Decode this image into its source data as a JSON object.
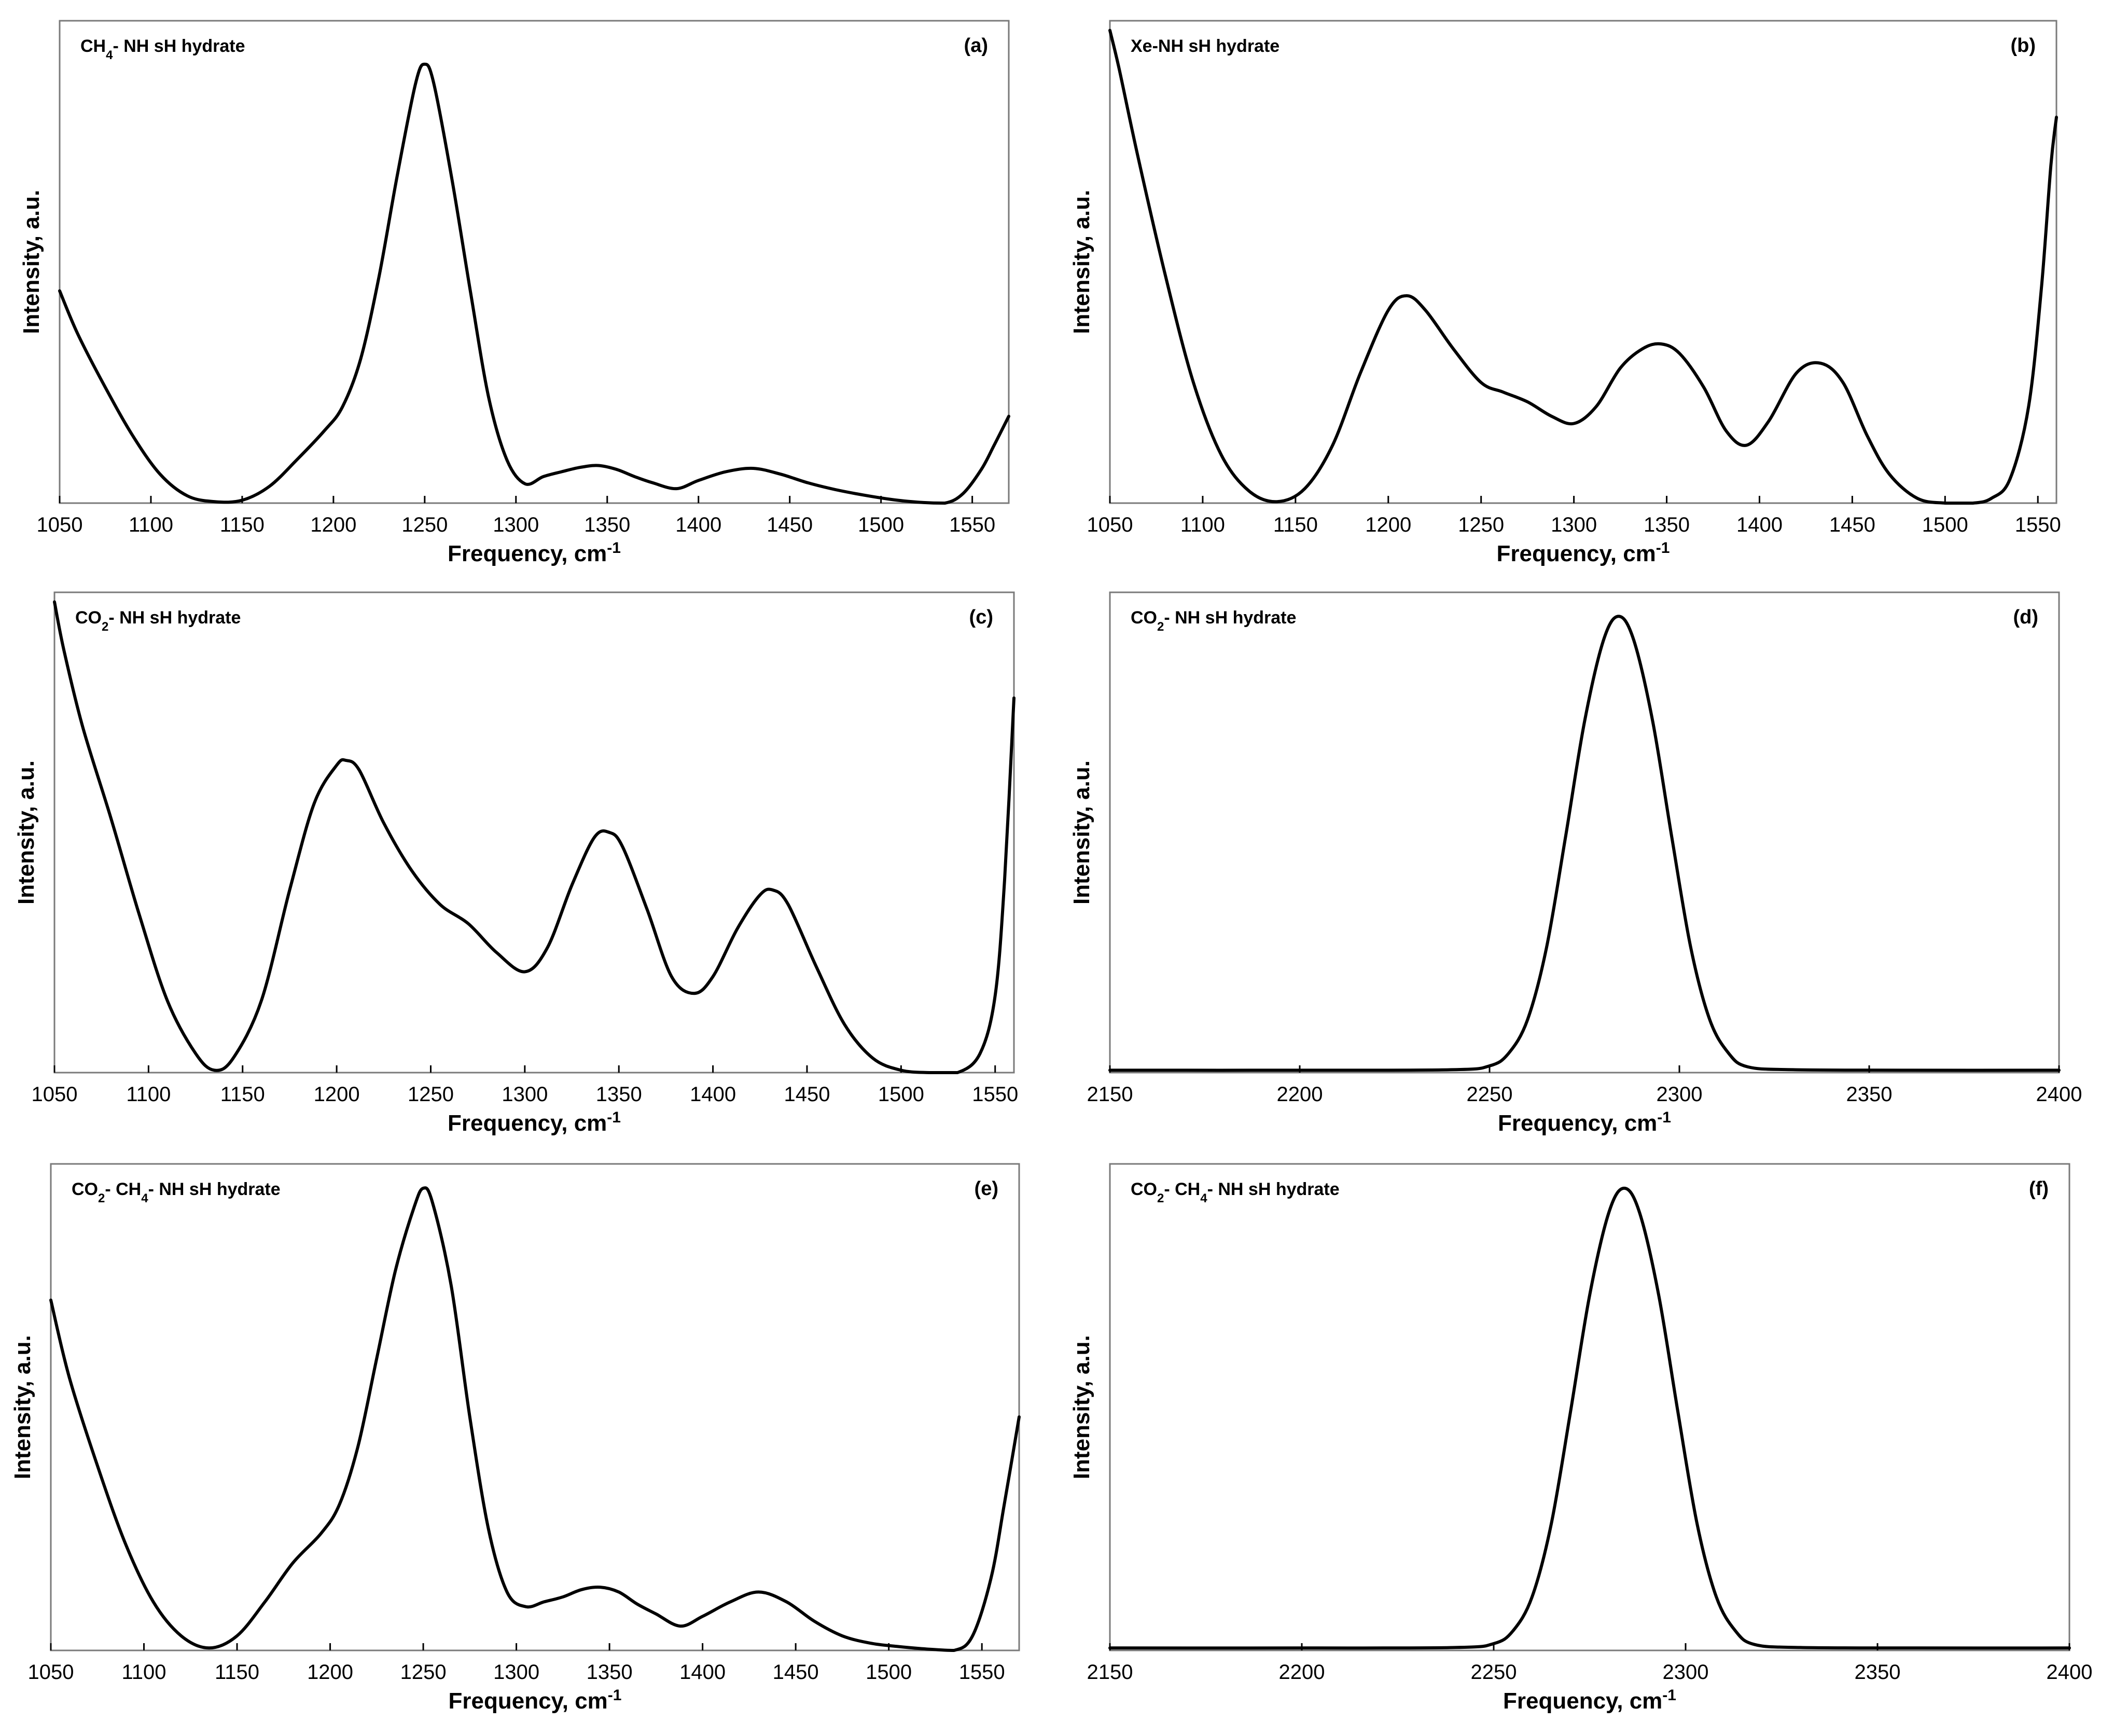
{
  "chart_data": [
    {
      "type": "line",
      "id": "a",
      "title": "CH4- NH sH hydrate",
      "panel_label": "(a)",
      "xlabel": "Frequency, cm-1",
      "ylabel": "Intensity, a.u.",
      "xlim": [
        1050,
        1570
      ],
      "ylim": [
        0,
        1
      ],
      "xticks": [
        1050,
        1100,
        1150,
        1200,
        1250,
        1300,
        1350,
        1400,
        1450,
        1500,
        1550
      ],
      "x": [
        1050,
        1060,
        1075,
        1090,
        1105,
        1120,
        1135,
        1150,
        1165,
        1180,
        1195,
        1205,
        1215,
        1225,
        1235,
        1245,
        1250,
        1255,
        1265,
        1275,
        1285,
        1295,
        1305,
        1315,
        1325,
        1335,
        1345,
        1355,
        1365,
        1375,
        1388,
        1400,
        1415,
        1430,
        1445,
        1460,
        1475,
        1490,
        1505,
        1520,
        1535,
        1545,
        1555,
        1562,
        1570
      ],
      "y": [
        0.44,
        0.35,
        0.24,
        0.14,
        0.06,
        0.015,
        0.003,
        0.006,
        0.035,
        0.09,
        0.15,
        0.2,
        0.3,
        0.47,
        0.68,
        0.87,
        0.91,
        0.87,
        0.67,
        0.44,
        0.22,
        0.09,
        0.04,
        0.055,
        0.065,
        0.074,
        0.078,
        0.07,
        0.055,
        0.042,
        0.03,
        0.047,
        0.065,
        0.072,
        0.06,
        0.042,
        0.028,
        0.017,
        0.008,
        0.002,
        0.0,
        0.02,
        0.07,
        0.12,
        0.18
      ]
    },
    {
      "type": "line",
      "id": "b",
      "title": "Xe-NH sH hydrate",
      "panel_label": "(b)",
      "xlabel": "Frequency, cm-1",
      "ylabel": "Intensity, a.u.",
      "xlim": [
        1050,
        1560
      ],
      "ylim": [
        0,
        1
      ],
      "xticks": [
        1050,
        1100,
        1150,
        1200,
        1250,
        1300,
        1350,
        1400,
        1450,
        1500,
        1550
      ],
      "x": [
        1050,
        1055,
        1065,
        1080,
        1095,
        1110,
        1125,
        1140,
        1155,
        1170,
        1185,
        1200,
        1210,
        1220,
        1235,
        1250,
        1262,
        1275,
        1288,
        1300,
        1312,
        1325,
        1337,
        1347,
        1357,
        1370,
        1382,
        1393,
        1405,
        1420,
        1433,
        1445,
        1458,
        1470,
        1485,
        1500,
        1515,
        1525,
        1535,
        1545,
        1552,
        1557,
        1560
      ],
      "y": [
        0.98,
        0.9,
        0.72,
        0.47,
        0.25,
        0.1,
        0.025,
        0.003,
        0.03,
        0.12,
        0.27,
        0.4,
        0.43,
        0.4,
        0.32,
        0.25,
        0.23,
        0.21,
        0.18,
        0.165,
        0.2,
        0.28,
        0.32,
        0.33,
        0.31,
        0.24,
        0.15,
        0.12,
        0.17,
        0.27,
        0.29,
        0.25,
        0.14,
        0.06,
        0.01,
        0.0,
        0.0,
        0.01,
        0.05,
        0.2,
        0.45,
        0.7,
        0.8
      ]
    },
    {
      "type": "line",
      "id": "c",
      "title": "CO2- NH sH hydrate",
      "panel_label": "(c)",
      "xlabel": "Frequency, cm-1",
      "ylabel": "Intensity, a.u.",
      "xlim": [
        1050,
        1560
      ],
      "ylim": [
        0,
        1
      ],
      "xticks": [
        1050,
        1100,
        1150,
        1200,
        1250,
        1300,
        1350,
        1400,
        1450,
        1500,
        1550
      ],
      "x": [
        1050,
        1055,
        1065,
        1080,
        1095,
        1110,
        1125,
        1135,
        1145,
        1160,
        1175,
        1188,
        1200,
        1205,
        1212,
        1225,
        1240,
        1255,
        1270,
        1285,
        1300,
        1312,
        1325,
        1337,
        1345,
        1352,
        1365,
        1378,
        1390,
        1400,
        1413,
        1425,
        1432,
        1440,
        1455,
        1470,
        1485,
        1500,
        1515,
        1530,
        1542,
        1550,
        1555,
        1560
      ],
      "y": [
        0.98,
        0.88,
        0.72,
        0.53,
        0.33,
        0.15,
        0.04,
        0.005,
        0.03,
        0.15,
        0.38,
        0.56,
        0.64,
        0.65,
        0.63,
        0.52,
        0.42,
        0.35,
        0.31,
        0.25,
        0.21,
        0.26,
        0.39,
        0.49,
        0.5,
        0.47,
        0.34,
        0.2,
        0.165,
        0.2,
        0.3,
        0.37,
        0.38,
        0.35,
        0.22,
        0.1,
        0.03,
        0.005,
        0.0,
        0.0,
        0.04,
        0.16,
        0.4,
        0.78
      ]
    },
    {
      "type": "line",
      "id": "d",
      "title": "CO2- NH sH hydrate",
      "panel_label": "(d)",
      "xlabel": "Frequency, cm-1",
      "ylabel": "Intensity, a.u.",
      "xlim": [
        2150,
        2400
      ],
      "ylim": [
        0,
        1
      ],
      "xticks": [
        2150,
        2200,
        2250,
        2300,
        2350,
        2400
      ],
      "x": [
        2150,
        2200,
        2240,
        2250,
        2255,
        2260,
        2265,
        2270,
        2275,
        2280,
        2284,
        2288,
        2293,
        2298,
        2303,
        2308,
        2313,
        2318,
        2330,
        2360,
        2400
      ],
      "y": [
        0.005,
        0.005,
        0.006,
        0.014,
        0.04,
        0.11,
        0.26,
        0.49,
        0.73,
        0.9,
        0.95,
        0.9,
        0.73,
        0.49,
        0.26,
        0.11,
        0.04,
        0.012,
        0.006,
        0.005,
        0.005
      ]
    },
    {
      "type": "line",
      "id": "e",
      "title": "CO2- CH4- NH sH hydrate",
      "panel_label": "(e)",
      "xlabel": "Frequency, cm-1",
      "ylabel": "Intensity, a.u.",
      "xlim": [
        1050,
        1570
      ],
      "ylim": [
        0,
        1
      ],
      "xticks": [
        1050,
        1100,
        1150,
        1200,
        1250,
        1300,
        1350,
        1400,
        1450,
        1500,
        1550
      ],
      "x": [
        1050,
        1060,
        1075,
        1090,
        1105,
        1120,
        1135,
        1150,
        1165,
        1180,
        1195,
        1205,
        1215,
        1225,
        1235,
        1245,
        1250,
        1255,
        1265,
        1275,
        1285,
        1295,
        1305,
        1315,
        1325,
        1335,
        1345,
        1355,
        1365,
        1375,
        1388,
        1400,
        1415,
        1430,
        1445,
        1460,
        1475,
        1490,
        1505,
        1520,
        1535,
        1545,
        1555,
        1562,
        1570
      ],
      "y": [
        0.72,
        0.56,
        0.38,
        0.22,
        0.1,
        0.03,
        0.005,
        0.03,
        0.1,
        0.18,
        0.24,
        0.3,
        0.42,
        0.6,
        0.78,
        0.91,
        0.95,
        0.92,
        0.75,
        0.48,
        0.25,
        0.12,
        0.09,
        0.1,
        0.11,
        0.125,
        0.13,
        0.12,
        0.095,
        0.075,
        0.05,
        0.07,
        0.1,
        0.12,
        0.1,
        0.06,
        0.03,
        0.015,
        0.008,
        0.003,
        0.0,
        0.03,
        0.15,
        0.3,
        0.48
      ]
    },
    {
      "type": "line",
      "id": "f",
      "title": "CO2- CH4- NH sH hydrate",
      "panel_label": "(f)",
      "xlabel": "Frequency, cm-1",
      "ylabel": "Intensity, a.u.",
      "xlim": [
        2150,
        2400
      ],
      "ylim": [
        0,
        1
      ],
      "xticks": [
        2150,
        2200,
        2250,
        2300,
        2350,
        2400
      ],
      "x": [
        2150,
        2200,
        2240,
        2250,
        2255,
        2260,
        2265,
        2270,
        2275,
        2280,
        2284,
        2288,
        2293,
        2298,
        2303,
        2308,
        2313,
        2318,
        2330,
        2360,
        2400
      ],
      "y": [
        0.005,
        0.005,
        0.006,
        0.014,
        0.04,
        0.11,
        0.26,
        0.49,
        0.73,
        0.9,
        0.95,
        0.9,
        0.73,
        0.49,
        0.26,
        0.11,
        0.04,
        0.012,
        0.006,
        0.005,
        0.005
      ]
    }
  ]
}
